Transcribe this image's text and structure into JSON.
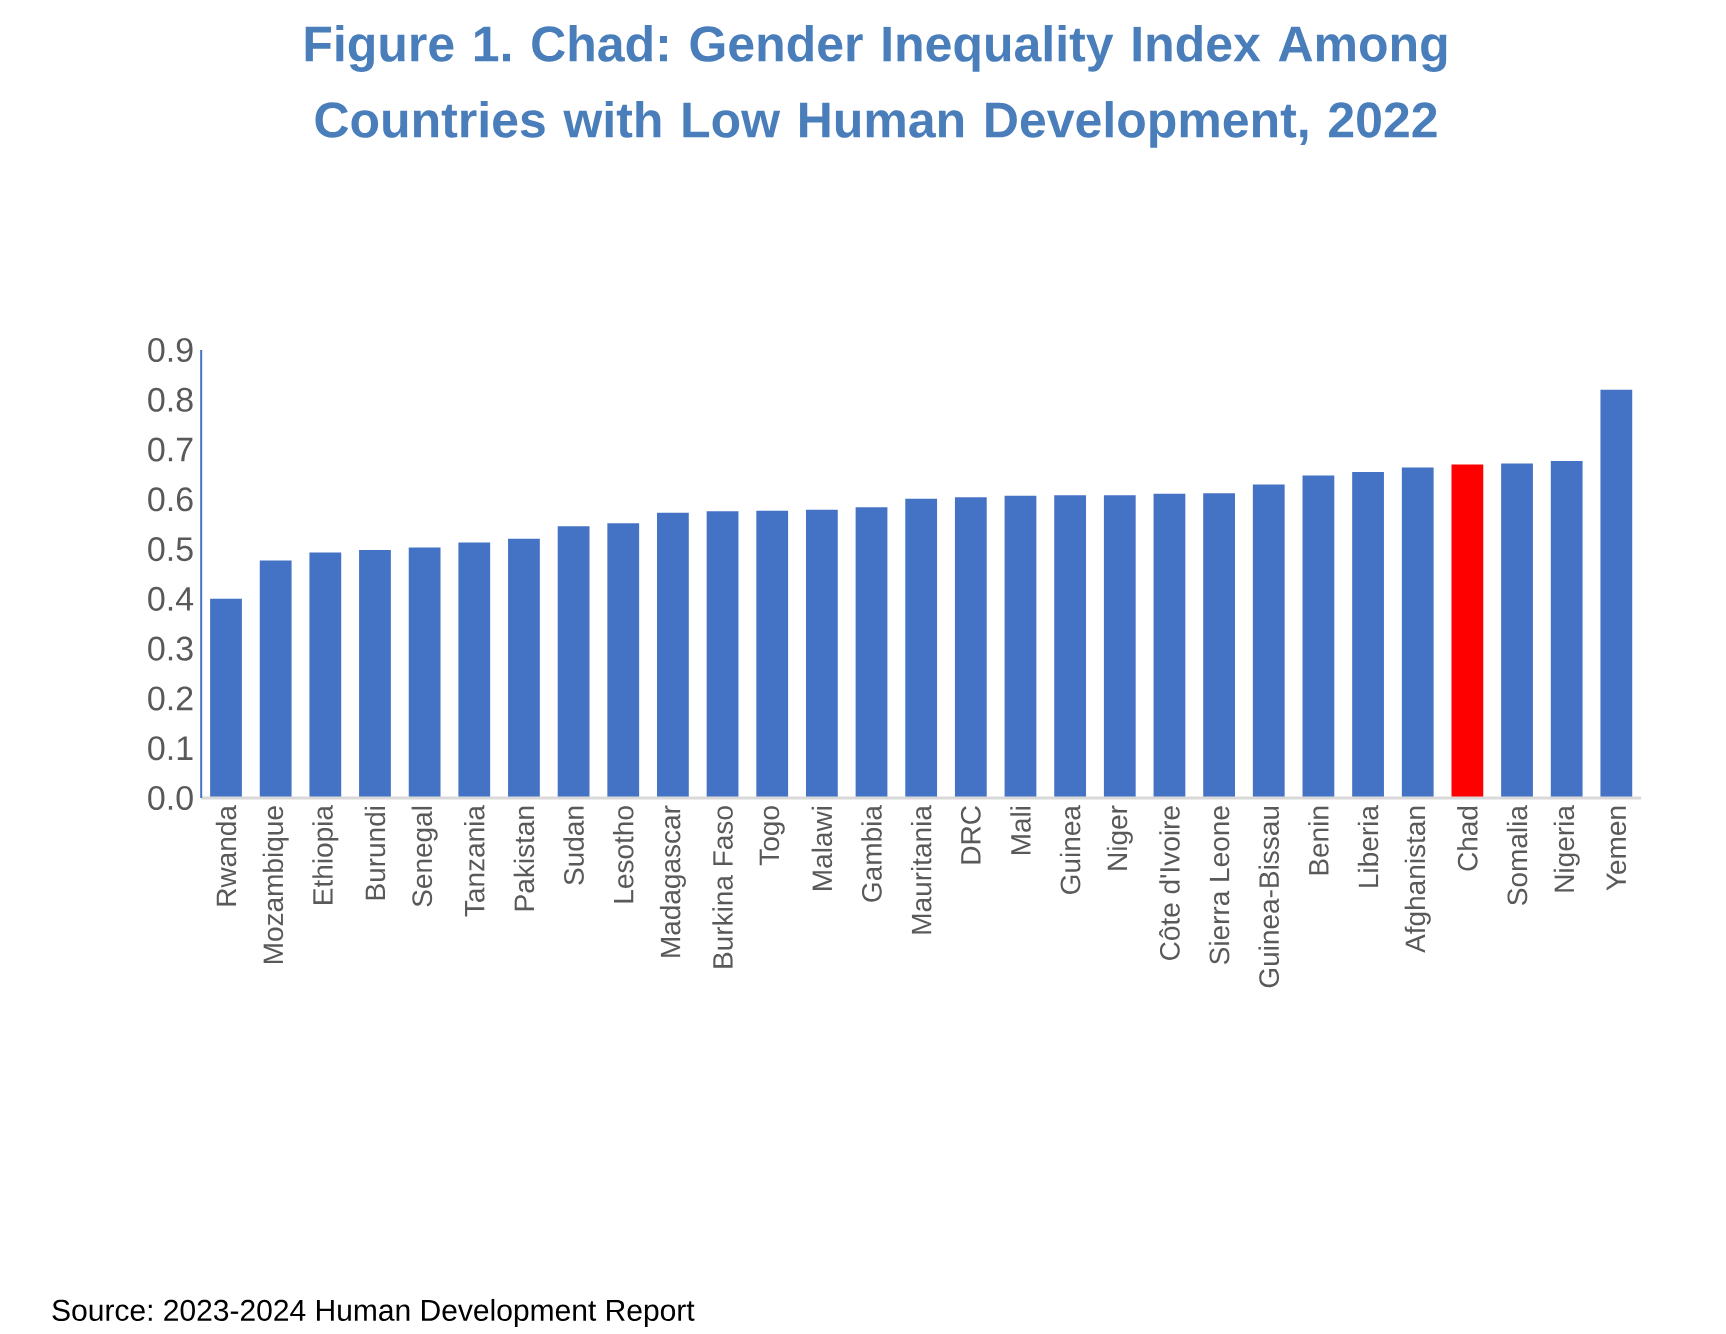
{
  "chart_data": {
    "type": "bar",
    "title": "Figure 1. Chad: Gender Inequality Index Among Countries with Low Human Development, 2022",
    "categories": [
      "Rwanda",
      "Mozambique",
      "Ethiopia",
      "Burundi",
      "Senegal",
      "Tanzania",
      "Pakistan",
      "Sudan",
      "Lesotho",
      "Madagascar",
      "Burkina Faso",
      "Togo",
      "Malawi",
      "Gambia",
      "Mauritania",
      "DRC",
      "Mali",
      "Guinea",
      "Niger",
      "Côte d'Ivoire",
      "Sierra Leone",
      "Guinea-Bissau",
      "Benin",
      "Liberia",
      "Afghanistan",
      "Chad",
      "Somalia",
      "Nigeria",
      "Yemen"
    ],
    "values": [
      0.4,
      0.477,
      0.493,
      0.498,
      0.503,
      0.513,
      0.521,
      0.546,
      0.552,
      0.573,
      0.576,
      0.577,
      0.579,
      0.584,
      0.601,
      0.604,
      0.607,
      0.608,
      0.608,
      0.611,
      0.612,
      0.63,
      0.648,
      0.655,
      0.664,
      0.67,
      0.672,
      0.677,
      0.82
    ],
    "colors": [
      "#4472c4",
      "#4472c4",
      "#4472c4",
      "#4472c4",
      "#4472c4",
      "#4472c4",
      "#4472c4",
      "#4472c4",
      "#4472c4",
      "#4472c4",
      "#4472c4",
      "#4472c4",
      "#4472c4",
      "#4472c4",
      "#4472c4",
      "#4472c4",
      "#4472c4",
      "#4472c4",
      "#4472c4",
      "#4472c4",
      "#4472c4",
      "#4472c4",
      "#4472c4",
      "#4472c4",
      "#4472c4",
      "#ff0000",
      "#4472c4",
      "#4472c4",
      "#4472c4"
    ],
    "ylim": [
      0,
      0.9
    ],
    "yticks": [
      {
        "value": 0,
        "label": "0.0"
      },
      0.1,
      0.2,
      0.3,
      0.4,
      0.5,
      0.6,
      0.7,
      0.8,
      0.9
    ],
    "grid": false,
    "annotations": [
      "Source: 2023-2024 Human Development Report"
    ]
  }
}
